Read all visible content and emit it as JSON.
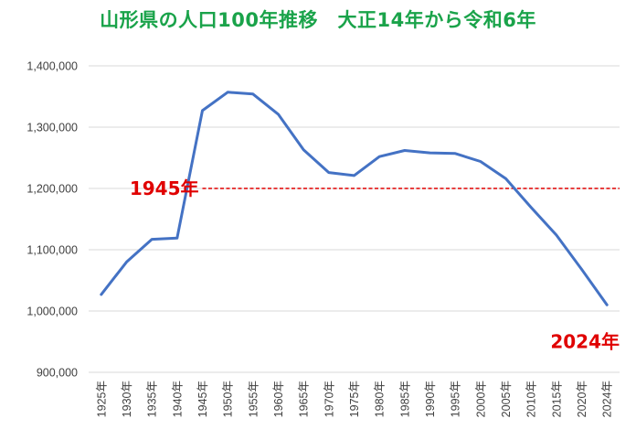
{
  "chart_data": {
    "type": "line",
    "title": "山形県の人口100年推移　大正14年から令和6年",
    "x": [
      "1925年",
      "1930年",
      "1935年",
      "1940年",
      "1945年",
      "1950年",
      "1955年",
      "1960年",
      "1965年",
      "1970年",
      "1975年",
      "1980年",
      "1985年",
      "1990年",
      "1995年",
      "2000年",
      "2005年",
      "2010年",
      "2015年",
      "2020年",
      "2024年"
    ],
    "series": [
      {
        "values": [
          1027000,
          1080000,
          1117000,
          1119000,
          1327000,
          1357000,
          1354000,
          1321000,
          1263000,
          1226000,
          1221000,
          1252000,
          1262000,
          1258000,
          1257000,
          1244000,
          1216000,
          1169000,
          1124000,
          1068000,
          1010000
        ],
        "color": "#4472c4"
      }
    ],
    "reference_line": {
      "value": 1200000,
      "color": "#e00000",
      "style": "dashed"
    },
    "annotations": [
      {
        "text": "1945年",
        "color": "#e00000"
      },
      {
        "text": "2024年",
        "color": "#e00000"
      }
    ],
    "ylim": [
      900000,
      1400000
    ],
    "yticks": [
      "900,000",
      "1,000,000",
      "1,100,000",
      "1,200,000",
      "1,300,000",
      "1,400,000"
    ],
    "xlabel": "",
    "ylabel": "",
    "grid": true,
    "legend": "none",
    "colors": {
      "title": "#1aa34a",
      "grid": "#d9d9d9",
      "axis_text": "#404040"
    }
  }
}
